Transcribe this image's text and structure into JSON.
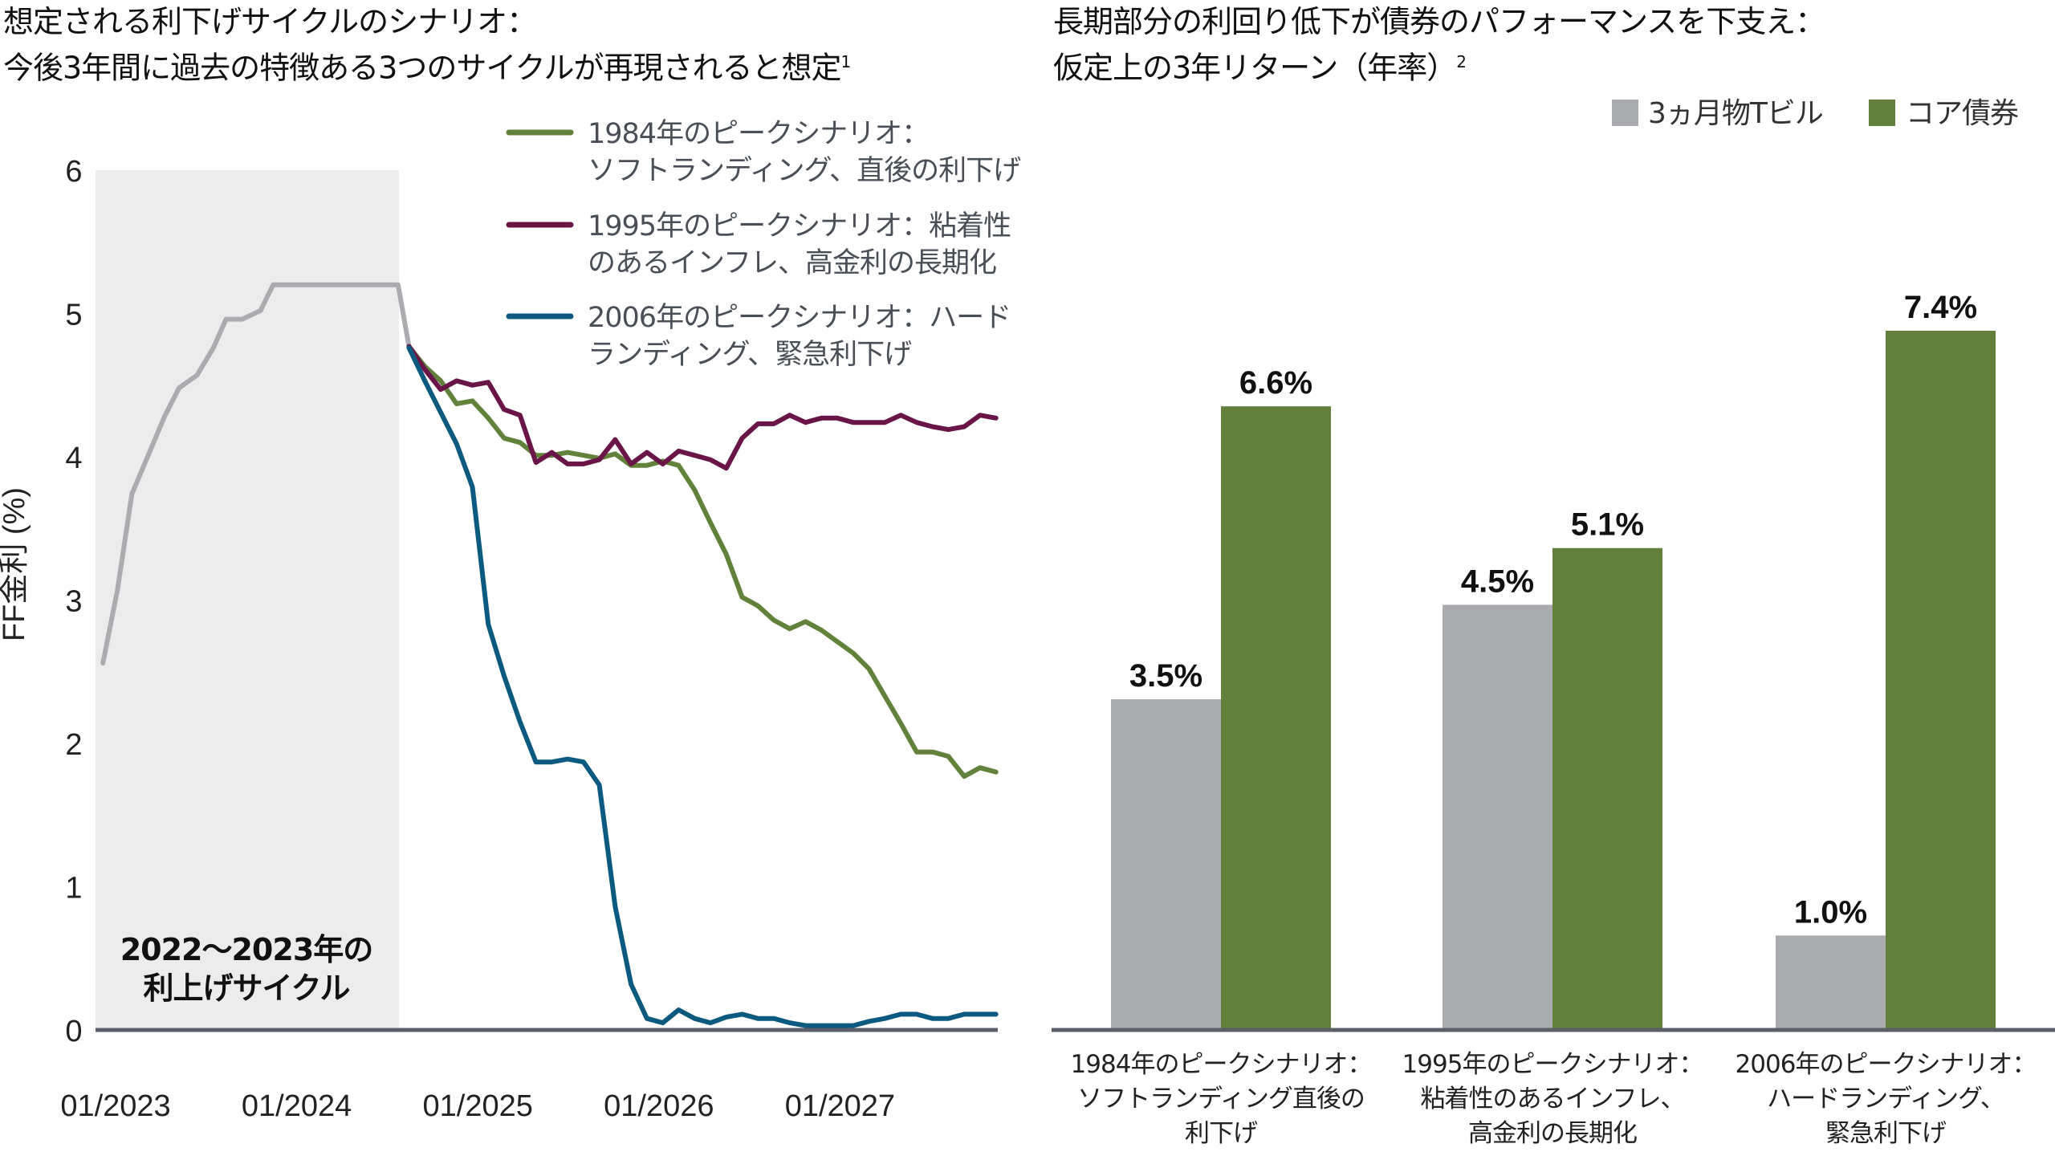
{
  "chart_data": [
    {
      "type": "line",
      "title_line1": "想定される利下げサイクルのシナリオ：",
      "title_line2": "今後3年間に過去の特徴ある3つのサイクルが再現されると想定",
      "title_footnote": "1",
      "ylabel": "FF金利 (%)",
      "xlabel": "",
      "ylim": [
        0,
        6
      ],
      "yticks": [
        "0",
        "1",
        "2",
        "3",
        "4",
        "5",
        "6"
      ],
      "xlim": [
        2022.9,
        2027.88
      ],
      "xticks": [
        {
          "label": "01/2023",
          "x": 2023.0
        },
        {
          "label": "01/2024",
          "x": 2024.0
        },
        {
          "label": "01/2025",
          "x": 2025.0
        },
        {
          "label": "01/2026",
          "x": 2026.0
        },
        {
          "label": "01/2027",
          "x": 2027.0
        }
      ],
      "shaded_region": {
        "x_from": 2022.9,
        "x_to": 2024.56,
        "label_line1": "2022〜2023年の",
        "label_line2": "利上げサイクル"
      },
      "legend_position": "top-right",
      "series": [
        {
          "name": "historical",
          "label": "",
          "color": "#abacb0",
          "points": [
            [
              2022.93,
              2.56
            ],
            [
              2023.01,
              3.07
            ],
            [
              2023.09,
              3.74
            ],
            [
              2023.27,
              4.28
            ],
            [
              2023.35,
              4.48
            ],
            [
              2023.45,
              4.57
            ],
            [
              2023.54,
              4.76
            ],
            [
              2023.61,
              4.96
            ],
            [
              2023.7,
              4.96
            ],
            [
              2023.8,
              5.02
            ],
            [
              2023.87,
              5.2
            ],
            [
              2024.56,
              5.2
            ],
            [
              2024.62,
              4.77
            ]
          ]
        },
        {
          "name": "1984",
          "label_line1": "1984年のピークシナリオ：",
          "label_line2": "ソフトランディング、直後の利下げ",
          "color": "#62813b",
          "start": 2024.62,
          "step": 0.0876,
          "values": [
            4.77,
            4.63,
            4.53,
            4.37,
            4.39,
            4.27,
            4.13,
            4.1,
            4.01,
            4.01,
            4.03,
            4.01,
            3.99,
            4.02,
            3.94,
            3.94,
            3.97,
            3.94,
            3.77,
            3.54,
            3.32,
            3.02,
            2.96,
            2.86,
            2.8,
            2.85,
            2.79,
            2.71,
            2.63,
            2.52,
            2.33,
            2.14,
            1.94,
            1.94,
            1.91,
            1.77,
            1.83,
            1.8
          ]
        },
        {
          "name": "1995",
          "label_line1": "1995年のピークシナリオ：粘着性",
          "label_line2": "のあるインフレ、高金利の長期化",
          "color": "#6a1548",
          "start": 2024.62,
          "step": 0.0876,
          "values": [
            4.77,
            4.61,
            4.47,
            4.53,
            4.5,
            4.52,
            4.33,
            4.29,
            3.96,
            4.03,
            3.95,
            3.95,
            3.98,
            4.12,
            3.95,
            4.03,
            3.95,
            4.04,
            4.01,
            3.98,
            3.92,
            4.13,
            4.23,
            4.23,
            4.29,
            4.24,
            4.27,
            4.27,
            4.24,
            4.24,
            4.24,
            4.29,
            4.24,
            4.21,
            4.19,
            4.21,
            4.29,
            4.27
          ]
        },
        {
          "name": "2006",
          "label_line1": "2006年のピークシナリオ：ハード",
          "label_line2": "ランディング、緊急利下げ",
          "color": "#0d5a80",
          "start": 2024.62,
          "step": 0.0876,
          "values": [
            4.76,
            4.53,
            4.31,
            4.09,
            3.79,
            2.83,
            2.47,
            2.15,
            1.87,
            1.87,
            1.89,
            1.87,
            1.71,
            0.86,
            0.32,
            0.08,
            0.05,
            0.14,
            0.08,
            0.05,
            0.09,
            0.11,
            0.08,
            0.08,
            0.05,
            0.03,
            0.03,
            0.03,
            0.03,
            0.06,
            0.08,
            0.11,
            0.11,
            0.08,
            0.08,
            0.11,
            0.11,
            0.11
          ]
        }
      ]
    },
    {
      "type": "bar",
      "title_line1": "長期部分の利回り低下が債券のパフォーマンスを下支え：",
      "title_line2": "仮定上の3年リターン（年率）",
      "title_footnote": "2",
      "legend_position": "top-right",
      "ylim": [
        0,
        7.4
      ],
      "categories": [
        {
          "line1": "1984年のピークシナリオ：",
          "line2": "ソフトランディング直後の",
          "line3": "利下げ"
        },
        {
          "line1": "1995年のピークシナリオ：",
          "line2": "粘着性のあるインフレ、",
          "line3": "高金利の長期化"
        },
        {
          "line1": "2006年のピークシナリオ：",
          "line2": "ハードランディング、",
          "line3": "緊急利下げ"
        }
      ],
      "series": [
        {
          "name": "3ヵ月物Tビル",
          "color": "#aaabaf",
          "values": [
            3.5,
            4.5,
            1.0
          ],
          "labels": [
            "3.5%",
            "4.5%",
            "1.0%"
          ]
        },
        {
          "name": "コア債券",
          "color": "#627f3b",
          "values": [
            6.6,
            5.1,
            7.4
          ],
          "labels": [
            "6.6%",
            "5.1%",
            "7.4%"
          ]
        }
      ]
    }
  ],
  "colors": {
    "axis": "#5b6068",
    "shade": "#ececec"
  }
}
